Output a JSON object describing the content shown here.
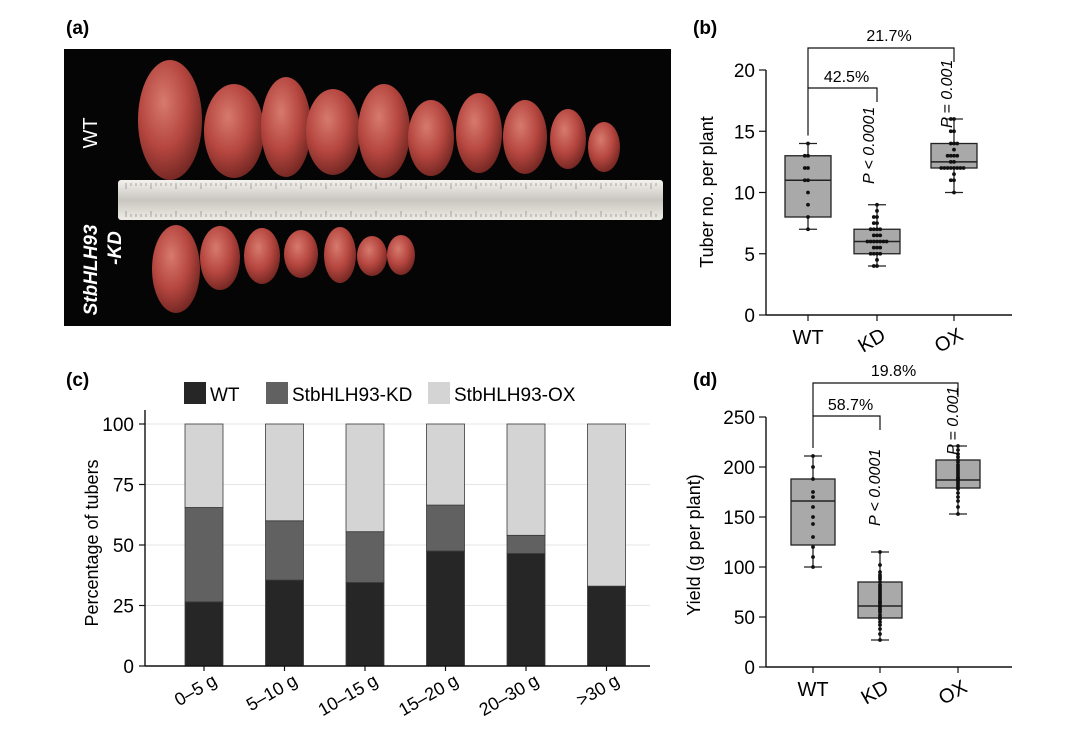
{
  "panel_labels": {
    "a": "(a)",
    "b": "(b)",
    "c": "(c)",
    "d": "(d)"
  },
  "photo": {
    "row_labels": [
      "WT",
      "StbHLH93",
      "-KD"
    ],
    "wt_tuber_count": 10,
    "kd_tuber_count": 7,
    "background_color": "#050505",
    "tuber_color": "#b84a45"
  },
  "chart_data": [
    {
      "id": "c",
      "type": "bar",
      "stacked": true,
      "title": "",
      "xlabel": "",
      "ylabel": "Percentage of tubers",
      "ylim": [
        0,
        100
      ],
      "yticks": [
        "0",
        "25",
        "50",
        "75",
        "100"
      ],
      "categories": [
        "0–5 g",
        "5–10 g",
        "10–15 g",
        "15–20 g",
        "20–30 g",
        ">30 g"
      ],
      "series": [
        {
          "name": "WT",
          "color": "#262626",
          "values": [
            26.5,
            35.5,
            34.5,
            47.5,
            46.5,
            33
          ]
        },
        {
          "name": "StbHLH93-KD",
          "color": "#616161",
          "values": [
            39,
            24.5,
            21,
            19,
            7.5,
            0
          ]
        },
        {
          "name": "StbHLH93-OX",
          "color": "#d4d4d4",
          "values": [
            34.5,
            40,
            44.5,
            33.5,
            46,
            67
          ]
        }
      ],
      "legend": "top"
    },
    {
      "id": "b",
      "type": "box",
      "ylabel": "Tuber no. per plant",
      "ylim": [
        0,
        20
      ],
      "yticks": [
        "0",
        "5",
        "10",
        "15",
        "20"
      ],
      "categories": [
        "WT",
        "KD",
        "OX"
      ],
      "boxes": [
        {
          "min": 7,
          "q1": 8,
          "median": 11,
          "q3": 13,
          "max": 14,
          "points": [
            7,
            8,
            9,
            10,
            11,
            11,
            12,
            12,
            13,
            13,
            14
          ]
        },
        {
          "min": 4,
          "q1": 5,
          "median": 6,
          "q3": 7,
          "max": 9,
          "points": [
            4,
            4,
            4.5,
            5,
            5,
            5,
            5,
            5.5,
            5.5,
            5.5,
            6,
            6,
            6,
            6,
            6,
            6,
            6,
            6.5,
            6.5,
            6.5,
            7,
            7,
            7,
            7,
            7.5,
            7.5,
            8,
            8,
            8.5,
            9
          ]
        },
        {
          "min": 10,
          "q1": 12,
          "median": 12.5,
          "q3": 14,
          "max": 16,
          "points": [
            10,
            11,
            11,
            11.5,
            12,
            12,
            12,
            12,
            12,
            12,
            12,
            12,
            12.5,
            12.5,
            13,
            13,
            13,
            13,
            13.5,
            14,
            14,
            14,
            15,
            15,
            16,
            16
          ]
        }
      ],
      "annotations": {
        "kd_pct": "42.5%",
        "kd_p": "P < 0.0001",
        "ox_pct": "21.7%",
        "ox_p": "P = 0.001"
      }
    },
    {
      "id": "d",
      "type": "box",
      "ylabel": "Yield (g per plant)",
      "ylim": [
        0,
        250
      ],
      "yticks": [
        "0",
        "50",
        "100",
        "150",
        "200",
        "250"
      ],
      "categories": [
        "WT",
        "KD",
        "OX"
      ],
      "boxes": [
        {
          "min": 100,
          "q1": 122,
          "median": 166,
          "q3": 188,
          "max": 211,
          "points": [
            100,
            110,
            120,
            130,
            143,
            150,
            160,
            170,
            175,
            188,
            200,
            211
          ]
        },
        {
          "min": 27,
          "q1": 49,
          "median": 61,
          "q3": 85,
          "max": 115,
          "points": [
            27,
            33,
            38,
            42,
            45,
            48,
            50,
            52,
            55,
            57,
            58,
            60,
            61,
            62,
            64,
            65,
            66,
            68,
            70,
            72,
            74,
            76,
            78,
            80,
            82,
            85,
            88,
            90,
            92,
            95,
            102,
            115
          ]
        },
        {
          "min": 153,
          "q1": 179,
          "median": 187,
          "q3": 207,
          "max": 221,
          "points": [
            153,
            160,
            166,
            170,
            174,
            178,
            180,
            182,
            184,
            186,
            187,
            188,
            189,
            190,
            192,
            194,
            196,
            198,
            200,
            202,
            205,
            207,
            210,
            213,
            217,
            221
          ]
        }
      ],
      "annotations": {
        "kd_pct": "58.7%",
        "kd_p": "P < 0.0001",
        "ox_pct": "19.8%",
        "ox_p": "P = 0.001"
      }
    }
  ]
}
